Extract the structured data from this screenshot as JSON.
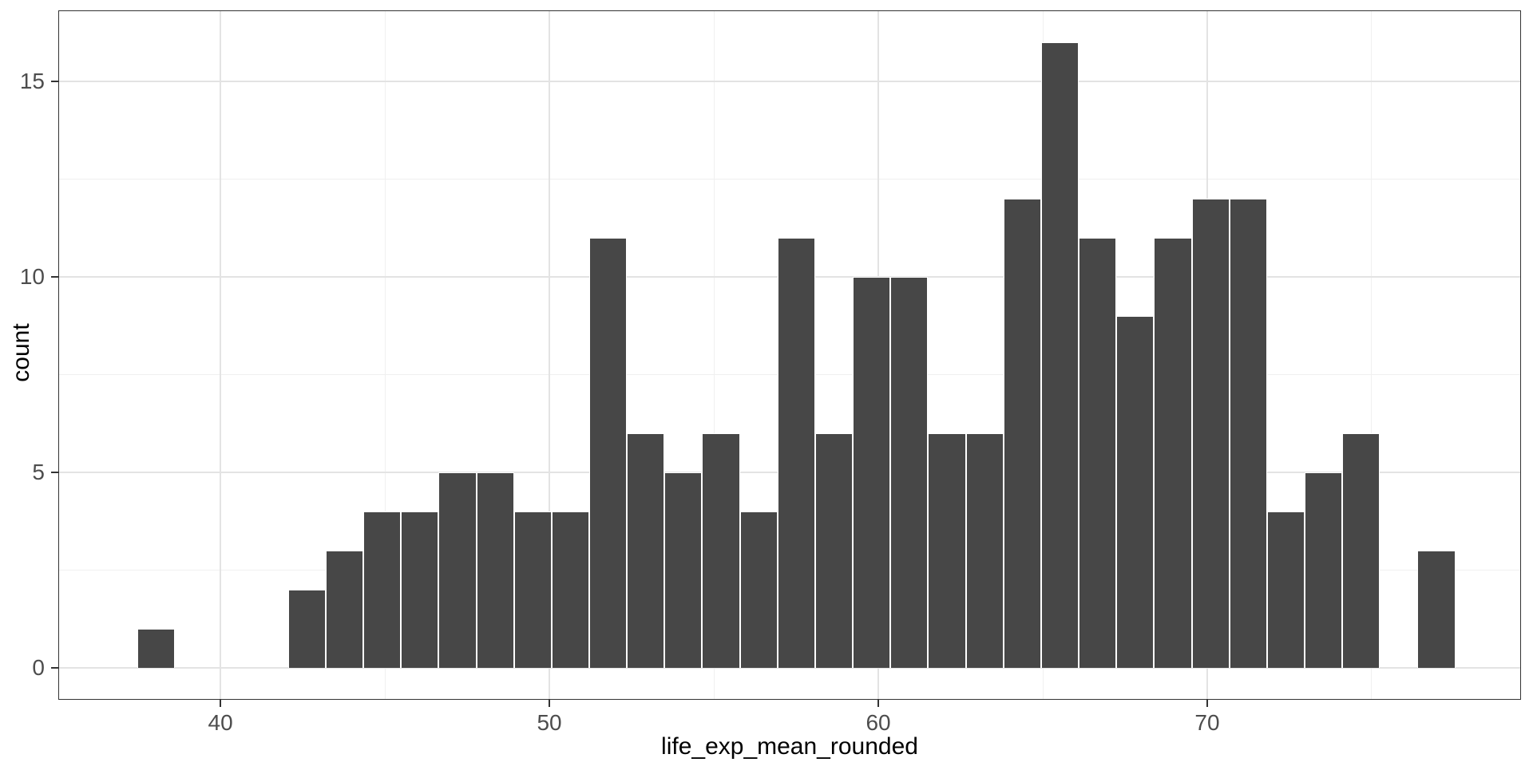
{
  "chart_data": {
    "type": "bar",
    "subtype": "histogram",
    "title": "",
    "xlabel": "life_exp_mean_rounded",
    "ylabel": "count",
    "bin_start": 37.476,
    "bin_width": 1.1447,
    "bin_centers": [
      38.0,
      39.15,
      40.29,
      41.44,
      42.59,
      43.74,
      44.88,
      46.03,
      47.18,
      48.32,
      49.47,
      50.62,
      51.76,
      52.91,
      54.06,
      55.21,
      56.35,
      57.5,
      58.65,
      59.79,
      60.94,
      62.09,
      63.24,
      64.38,
      65.53,
      66.68,
      67.82,
      68.97,
      70.12,
      71.26,
      72.41,
      73.56,
      74.71,
      75.85,
      77.0
    ],
    "counts": [
      1,
      0,
      0,
      0,
      2,
      3,
      4,
      4,
      5,
      5,
      4,
      4,
      11,
      6,
      5,
      6,
      4,
      11,
      6,
      10,
      10,
      6,
      6,
      12,
      16,
      11,
      9,
      11,
      12,
      12,
      4,
      5,
      6,
      0,
      3
    ],
    "x_ticks": [
      40,
      50,
      60,
      70
    ],
    "x_minor_gridlines": [
      45,
      55,
      65,
      75
    ],
    "y_ticks": [
      0,
      5,
      10,
      15
    ],
    "y_minor_gridlines": [
      2.5,
      7.5,
      12.5
    ],
    "x_range": [
      35.07,
      79.54
    ],
    "y_range": [
      -0.82,
      16.82
    ],
    "grid": true,
    "legend_position": "none"
  },
  "style": {
    "bar_fill": "#474747",
    "bar_stroke": "#ffffff",
    "panel_border": "#333333",
    "grid_major": "#e3e3e3",
    "grid_minor": "#f0f0f0",
    "tick_color": "#333333",
    "tick_label_color": "#4d4d4d",
    "axis_title_color": "#000000",
    "background": "#ffffff"
  }
}
